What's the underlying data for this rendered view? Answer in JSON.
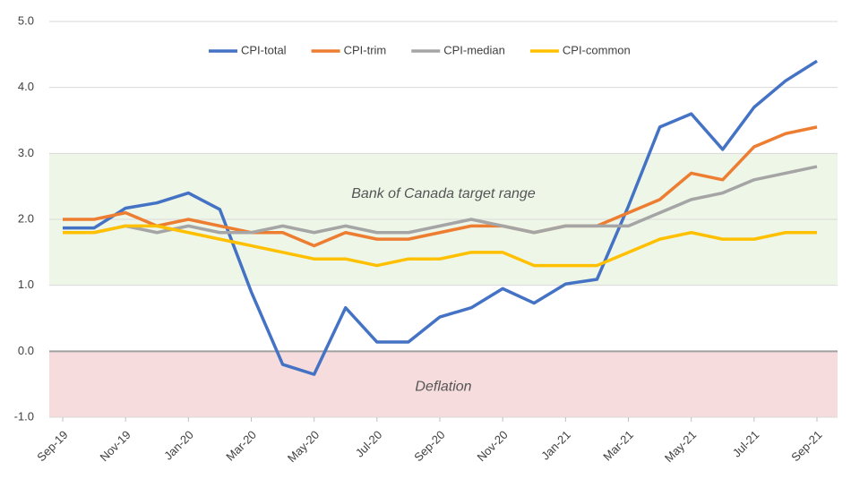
{
  "chart_data": {
    "type": "line",
    "categories": [
      "Sep-19",
      null,
      "Nov-19",
      null,
      "Jan-20",
      null,
      "Mar-20",
      null,
      "May-20",
      null,
      "Jul-20",
      null,
      "Sep-20",
      null,
      "Nov-20",
      null,
      "Jan-21",
      null,
      "Mar-21",
      null,
      "May-21",
      null,
      "Jul-21",
      null,
      "Sep-21"
    ],
    "series": [
      {
        "name": "CPI-total",
        "color": "#4472c4",
        "values": [
          1.87,
          1.87,
          2.17,
          2.25,
          2.4,
          2.15,
          0.9,
          -0.2,
          -0.35,
          0.66,
          0.14,
          0.14,
          0.52,
          0.66,
          0.95,
          0.73,
          1.02,
          1.09,
          2.2,
          3.4,
          3.6,
          3.06,
          3.7,
          4.1,
          4.4
        ]
      },
      {
        "name": "CPI-trim",
        "color": "#ed7d31",
        "values": [
          2.0,
          2.0,
          2.1,
          1.9,
          2.0,
          1.9,
          1.8,
          1.8,
          1.6,
          1.8,
          1.7,
          1.7,
          1.8,
          1.9,
          1.9,
          1.8,
          1.9,
          1.9,
          2.1,
          2.3,
          2.7,
          2.6,
          3.1,
          3.3,
          3.4
        ]
      },
      {
        "name": "CPI-median",
        "color": "#a5a5a5",
        "values": [
          1.8,
          1.8,
          1.9,
          1.8,
          1.9,
          1.8,
          1.8,
          1.9,
          1.8,
          1.9,
          1.8,
          1.8,
          1.9,
          2.0,
          1.9,
          1.8,
          1.9,
          1.9,
          1.9,
          2.1,
          2.3,
          2.4,
          2.6,
          2.7,
          2.8
        ]
      },
      {
        "name": "CPI-common",
        "color": "#ffc000",
        "values": [
          1.8,
          1.8,
          1.9,
          1.9,
          1.8,
          1.7,
          1.6,
          1.5,
          1.4,
          1.4,
          1.3,
          1.4,
          1.4,
          1.5,
          1.5,
          1.3,
          1.3,
          1.3,
          1.5,
          1.7,
          1.8,
          1.7,
          1.7,
          1.8,
          1.8
        ]
      }
    ],
    "bands": [
      {
        "label": "Bank of Canada target range",
        "from": 1,
        "to": 3,
        "color": "#eef6e8"
      },
      {
        "label": "Deflation",
        "from": -1,
        "to": 0,
        "color": "#f6dcdc"
      }
    ],
    "ylim": [
      -1,
      5
    ],
    "yticks": [
      {
        "value": -1,
        "label": "-1.0"
      },
      {
        "value": 0,
        "label": "0.0"
      },
      {
        "value": 1,
        "label": "1.0"
      },
      {
        "value": 2,
        "label": "2.0"
      },
      {
        "value": 3,
        "label": "3.0"
      },
      {
        "value": 4,
        "label": "4.0"
      },
      {
        "value": 5,
        "label": "5.0"
      }
    ],
    "grid": true,
    "legend": "top"
  }
}
